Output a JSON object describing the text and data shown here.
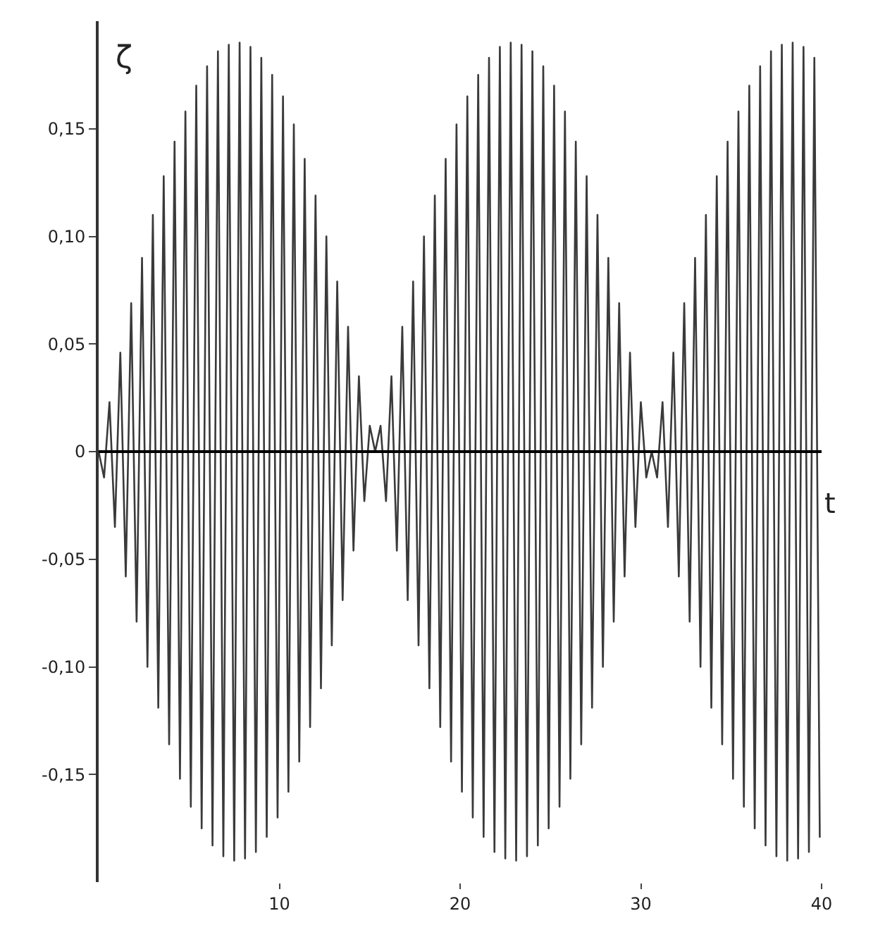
{
  "chart_data": {
    "type": "line",
    "xlabel": "t",
    "ylabel": "ζ",
    "marker": "none",
    "line_style": "solid",
    "ref_lines": [
      {
        "axis": "y",
        "value": 0,
        "color": "#000000"
      }
    ],
    "xlim": [
      0,
      40
    ],
    "xticks": [
      10,
      20,
      30,
      40
    ],
    "ylim": [
      -0.2,
      0.2
    ],
    "yticks": [
      {
        "value": 0.15,
        "label": "0,15"
      },
      {
        "value": 0.1,
        "label": "0,10"
      },
      {
        "value": 0.05,
        "label": "0,05"
      },
      0,
      {
        "value": -0.05,
        "label": "-0,05"
      },
      {
        "value": -0.1,
        "label": "-0,10"
      },
      {
        "value": -0.15,
        "label": "-0,15"
      }
    ],
    "series": [
      {
        "color": "#3a3a3a",
        "x": [
          0,
          0.3,
          0.6,
          0.9,
          1.2,
          1.5,
          1.8,
          2.1,
          2.4,
          2.7,
          3,
          3.3,
          3.6,
          3.9,
          4.2,
          4.5,
          4.8,
          5.1,
          5.4,
          5.7,
          6,
          6.3,
          6.6,
          6.9,
          7.2,
          7.5,
          7.8,
          8.1,
          8.4,
          8.7,
          9,
          9.3,
          9.6,
          9.9,
          10.2,
          10.5,
          10.8,
          11.1,
          11.4,
          11.7,
          12,
          12.3,
          12.6,
          12.9,
          13.2,
          13.5,
          13.8,
          14.1,
          14.4,
          14.7,
          15,
          15.3,
          15.6,
          15.9,
          16.2,
          16.5,
          16.8,
          17.1,
          17.4,
          17.7,
          18,
          18.3,
          18.6,
          18.9,
          19.2,
          19.5,
          19.8,
          20.1,
          20.4,
          20.7,
          21,
          21.3,
          21.6,
          21.9,
          22.2,
          22.5,
          22.8,
          23.1,
          23.4,
          23.7,
          24,
          24.3,
          24.6,
          24.9,
          25.2,
          25.5,
          25.8,
          26.1,
          26.4,
          26.7,
          27,
          27.3,
          27.6,
          27.9,
          28.2,
          28.5,
          28.8,
          29.1,
          29.4,
          29.7,
          30,
          30.3,
          30.6,
          30.9,
          31.2,
          31.5,
          31.8,
          32.1,
          32.4,
          32.7,
          33,
          33.3,
          33.6,
          33.9,
          34.2,
          34.5,
          34.8,
          35.1,
          35.4,
          35.7,
          36,
          36.3,
          36.6,
          36.9,
          37.2,
          37.5,
          37.8,
          38.1,
          38.4,
          38.7,
          39,
          39.3,
          39.6,
          39.9
        ],
        "values": [
          0,
          -0.012,
          0.023,
          -0.035,
          0.046,
          -0.058,
          0.069,
          -0.079,
          0.09,
          -0.1,
          0.11,
          -0.119,
          0.128,
          -0.136,
          0.144,
          -0.152,
          0.158,
          -0.165,
          0.17,
          -0.175,
          0.179,
          -0.183,
          0.186,
          -0.188,
          0.189,
          -0.19,
          0.19,
          -0.189,
          0.188,
          -0.186,
          0.183,
          -0.179,
          0.175,
          -0.17,
          0.165,
          -0.158,
          0.152,
          -0.144,
          0.136,
          -0.128,
          0.119,
          -0.11,
          0.1,
          -0.09,
          0.079,
          -0.069,
          0.058,
          -0.046,
          0.035,
          -0.023,
          0.012,
          0,
          0.012,
          -0.023,
          0.035,
          -0.046,
          0.058,
          -0.069,
          0.079,
          -0.09,
          0.1,
          -0.11,
          0.119,
          -0.128,
          0.136,
          -0.144,
          0.152,
          -0.158,
          0.165,
          -0.17,
          0.175,
          -0.179,
          0.183,
          -0.186,
          0.188,
          -0.189,
          0.19,
          -0.19,
          0.189,
          -0.188,
          0.186,
          -0.183,
          0.179,
          -0.175,
          0.17,
          -0.165,
          0.158,
          -0.152,
          0.144,
          -0.136,
          0.128,
          -0.119,
          0.11,
          -0.1,
          0.09,
          -0.079,
          0.069,
          -0.058,
          0.046,
          -0.035,
          0.023,
          -0.012,
          0,
          -0.012,
          0.023,
          -0.035,
          0.046,
          -0.058,
          0.069,
          -0.079,
          0.09,
          -0.1,
          0.11,
          -0.119,
          0.128,
          -0.136,
          0.144,
          -0.152,
          0.158,
          -0.165,
          0.17,
          -0.175,
          0.179,
          -0.183,
          0.186,
          -0.188,
          0.189,
          -0.19,
          0.19,
          -0.189,
          0.188,
          -0.186,
          0.183,
          -0.179
        ]
      }
    ]
  }
}
